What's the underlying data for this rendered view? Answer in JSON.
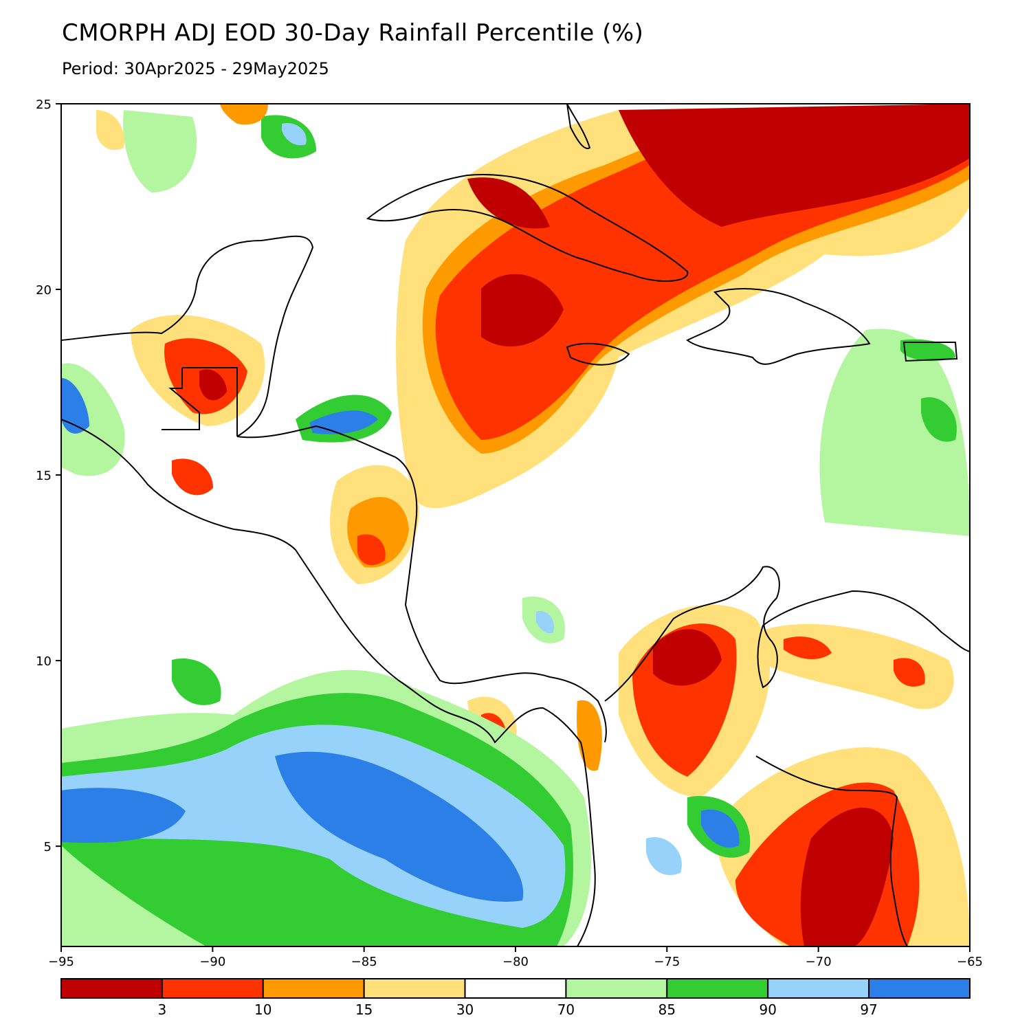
{
  "header": {
    "title": "CMORPH ADJ EOD 30-Day Rainfall Percentile (%)",
    "subtitle": "Period: 30Apr2025 - 29May2025"
  },
  "map": {
    "lon_range": [
      -95,
      -65
    ],
    "lat_range": [
      2.3,
      25
    ],
    "lon_ticks": [
      {
        "value": -95,
        "label": "−95"
      },
      {
        "value": -90,
        "label": "−90"
      },
      {
        "value": -85,
        "label": "−85"
      },
      {
        "value": -80,
        "label": "−80"
      },
      {
        "value": -75,
        "label": "−75"
      },
      {
        "value": -70,
        "label": "−70"
      },
      {
        "value": -65,
        "label": "−65"
      }
    ],
    "lat_ticks": [
      {
        "value": 25,
        "label": "25"
      },
      {
        "value": 20,
        "label": "20"
      },
      {
        "value": 15,
        "label": "15"
      },
      {
        "value": 10,
        "label": "10"
      },
      {
        "value": 5,
        "label": "5"
      }
    ]
  },
  "colorbar": {
    "colors": [
      "#c00000",
      "#ff3300",
      "#ff9900",
      "#ffe07a",
      "#ffffff",
      "#b4f5a0",
      "#33cc33",
      "#96d2fa",
      "#2b7fe6"
    ],
    "labels": [
      "3",
      "10",
      "15",
      "30",
      "70",
      "85",
      "90",
      "97"
    ]
  }
}
